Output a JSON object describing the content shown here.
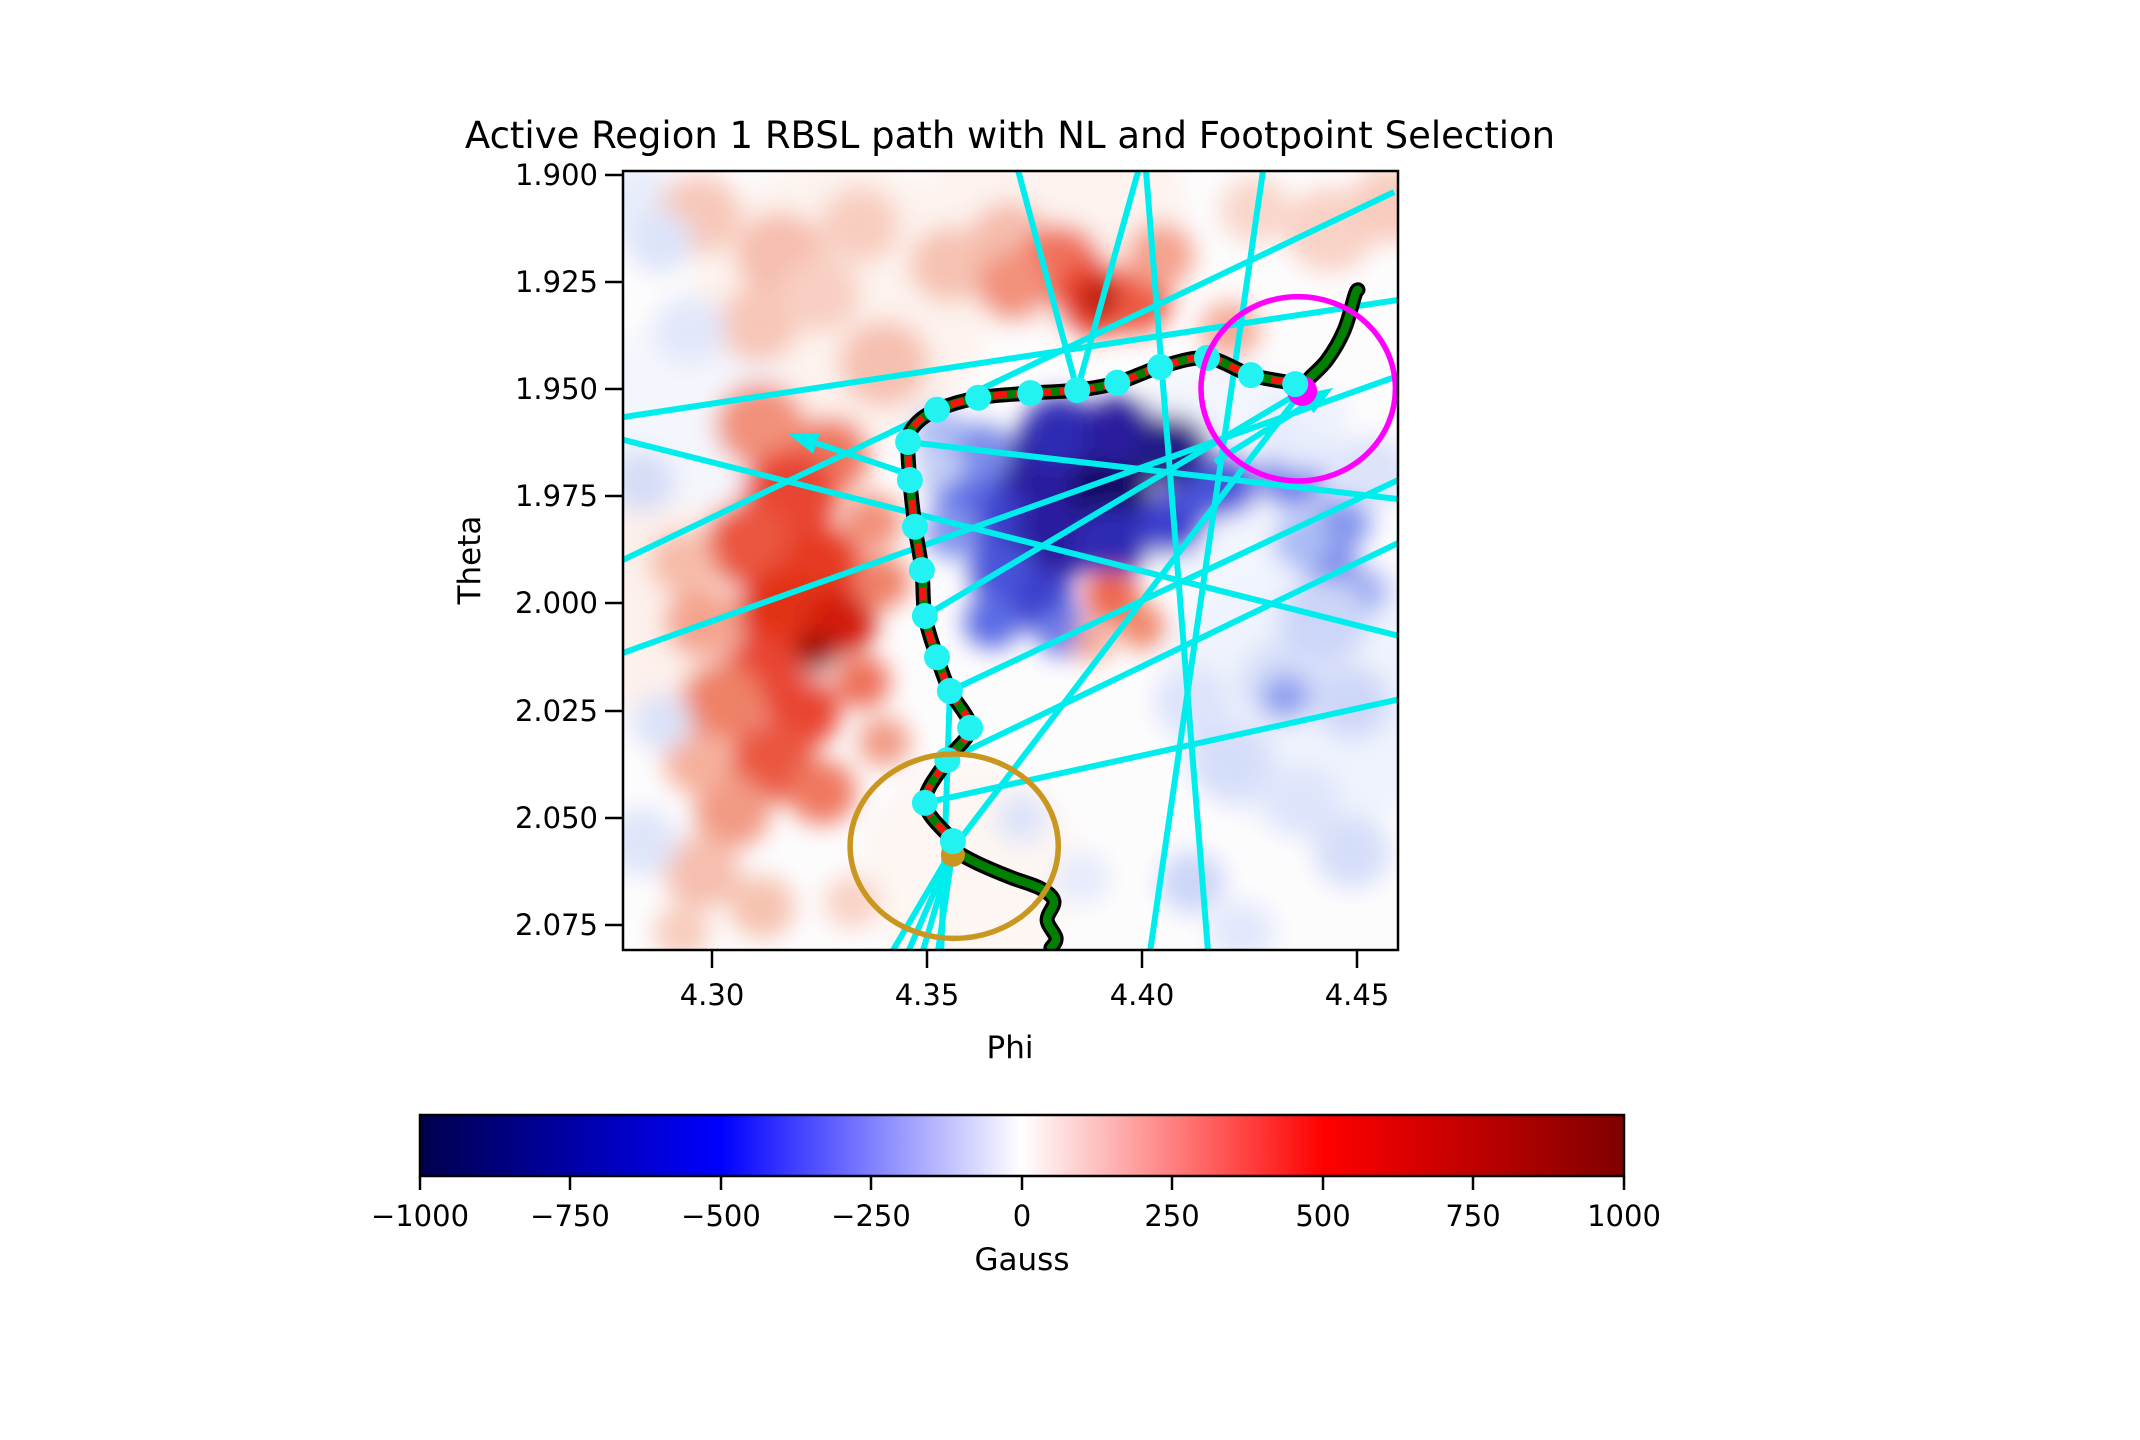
{
  "title": "Active Region 1 RBSL path with NL and Footpoint Selection",
  "axes": {
    "x": {
      "label": "Phi",
      "tick_labels": [
        "4.30",
        "4.35",
        "4.40",
        "4.45"
      ]
    },
    "y": {
      "label": "Theta",
      "tick_labels": [
        "1.900",
        "1.925",
        "1.950",
        "1.975",
        "2.000",
        "2.025",
        "2.050",
        "2.075"
      ]
    }
  },
  "colorbar": {
    "label": "Gauss",
    "tick_labels": [
      "−1000",
      "−750",
      "−500",
      "−250",
      "0",
      "250",
      "500",
      "750",
      "1000"
    ],
    "min": -1000,
    "max": 1000
  },
  "chart_data": {
    "type": "heatmap",
    "title": "Active Region 1 RBSL path with NL and Footpoint Selection",
    "xlabel": "Phi",
    "ylabel": "Theta",
    "xlim": [
      4.2793,
      4.4595
    ],
    "ylim": [
      1.8991,
      2.0808
    ],
    "x_ticks": [
      4.3,
      4.35,
      4.4,
      4.45
    ],
    "y_ticks": [
      1.9,
      1.925,
      1.95,
      1.975,
      2.0,
      2.025,
      2.05,
      2.075
    ],
    "colormap": "seismic",
    "clim": [
      -1000,
      1000
    ],
    "colorbar_label": "Gauss",
    "colormap_stops": [
      [
        0,
        "#00004D"
      ],
      [
        0.25,
        "#0000FF"
      ],
      [
        0.5,
        "#FFFFFF"
      ],
      [
        0.75,
        "#FF0000"
      ],
      [
        1,
        "#800000"
      ]
    ],
    "colors": {
      "nl_line": "#00EDED",
      "path_outline": "#000000",
      "path_green": "#008000",
      "path_dash": "#FF1010",
      "dot": "#22F2F2",
      "magenta": "#FF00FF",
      "goldenrod": "#C99720"
    },
    "rbsl_path": {
      "green_head": [
        [
          4.4502,
          1.9268
        ],
        [
          4.4495,
          1.928
        ],
        [
          4.447,
          1.9362
        ],
        [
          4.443,
          1.9432
        ],
        [
          4.4386,
          1.9478
        ],
        [
          4.4372,
          1.9504
        ]
      ],
      "neutral_line": [
        [
          4.4372,
          1.9504
        ],
        [
          4.4356,
          1.9488
        ],
        [
          4.4253,
          1.9467
        ],
        [
          4.4151,
          1.9427
        ],
        [
          4.4042,
          1.9448
        ],
        [
          4.3942,
          1.9485
        ],
        [
          4.3849,
          1.9502
        ],
        [
          4.374,
          1.9509
        ],
        [
          4.3619,
          1.952
        ],
        [
          4.3523,
          1.9548
        ],
        [
          4.3474,
          1.9581
        ],
        [
          4.3456,
          1.9623
        ],
        [
          4.346,
          1.9712
        ],
        [
          4.3472,
          1.9821
        ],
        [
          4.3488,
          1.9922
        ],
        [
          4.3495,
          2.0029
        ],
        [
          4.3523,
          2.0125
        ],
        [
          4.3553,
          2.0204
        ],
        [
          4.36,
          2.029
        ],
        [
          4.3547,
          2.0365
        ],
        [
          4.3495,
          2.0465
        ],
        [
          4.356,
          2.0554
        ],
        [
          4.356,
          2.0572
        ]
      ],
      "green_tail": [
        [
          4.356,
          2.0572
        ],
        [
          4.3612,
          2.0603
        ],
        [
          4.3693,
          2.0638
        ],
        [
          4.3763,
          2.0664
        ],
        [
          4.3795,
          2.0694
        ],
        [
          4.3779,
          2.0738
        ],
        [
          4.38,
          2.078
        ],
        [
          4.3788,
          2.0803
        ]
      ]
    },
    "path_dots": [
      [
        4.4356,
        1.9488
      ],
      [
        4.4253,
        1.9467
      ],
      [
        4.4151,
        1.9427
      ],
      [
        4.4042,
        1.9448
      ],
      [
        4.3942,
        1.9485
      ],
      [
        4.3849,
        1.9502
      ],
      [
        4.374,
        1.9509
      ],
      [
        4.3619,
        1.952
      ],
      [
        4.3523,
        1.9548
      ],
      [
        4.3456,
        1.9623
      ],
      [
        4.346,
        1.9712
      ],
      [
        4.3472,
        1.9821
      ],
      [
        4.3488,
        1.9922
      ],
      [
        4.3495,
        2.0029
      ],
      [
        4.3523,
        2.0125
      ],
      [
        4.3553,
        2.0204
      ],
      [
        4.36,
        2.029
      ],
      [
        4.3547,
        2.0365
      ],
      [
        4.3495,
        2.0465
      ],
      [
        4.356,
        2.0554
      ]
    ],
    "footpoints": {
      "positive": {
        "phi": 4.4372,
        "theta": 1.9504,
        "color": "#FF00FF",
        "radius_px": 15
      },
      "negative": {
        "phi": 4.356,
        "theta": 2.0572,
        "color": "#C99720",
        "radius_px": 12
      }
    },
    "selection_circles": [
      {
        "phi": 4.4363,
        "theta": 1.9499,
        "rx": 0.0226,
        "ry": 0.0215,
        "color": "#FF00FF"
      },
      {
        "phi": 4.3563,
        "theta": 2.0566,
        "rx": 0.0242,
        "ry": 0.0215,
        "color": "#C99720"
      }
    ],
    "arrows": [
      {
        "from": [
          4.417,
          1.967
        ],
        "to": [
          4.4444,
          1.9497
        ]
      },
      {
        "from": [
          4.3484,
          1.9707
        ],
        "to": [
          4.3177,
          1.9604
        ]
      }
    ],
    "nl_candidate_lines": [
      [
        4.3712,
        1.8991,
        4.3849,
        1.9502
      ],
      [
        4.3991,
        1.8991,
        4.3849,
        1.9502
      ],
      [
        4.4009,
        1.8991,
        4.4153,
        2.0808
      ],
      [
        4.4281,
        1.8991,
        4.4019,
        2.0808
      ],
      [
        4.2793,
        1.9565,
        4.4595,
        1.9292
      ],
      [
        4.2793,
        1.9898,
        4.4586,
        1.904
      ],
      [
        4.2793,
        1.9618,
        4.4595,
        2.0075
      ],
      [
        4.2793,
        2.0115,
        4.4595,
        1.9469
      ],
      [
        4.3456,
        1.9623,
        4.4595,
        1.9756
      ],
      [
        4.3495,
        2.0029,
        4.4372,
        1.9504
      ],
      [
        4.3553,
        2.0204,
        4.4595,
        1.9712
      ],
      [
        4.3547,
        2.0365,
        4.4595,
        1.9859
      ],
      [
        4.356,
        2.0572,
        4.4372,
        1.9504
      ],
      [
        4.356,
        2.0572,
        4.3421,
        2.0808
      ],
      [
        4.356,
        2.0572,
        4.3458,
        2.0808
      ],
      [
        4.356,
        2.0572,
        4.3491,
        2.0808
      ],
      [
        4.356,
        2.0572,
        4.3526,
        2.0808
      ],
      [
        4.3553,
        2.0204,
        4.3533,
        2.0808
      ],
      [
        4.3495,
        2.0465,
        4.4595,
        2.0224
      ]
    ],
    "heat_blobs": [
      [
        4.33,
        1.93,
        150,
        "#fdf3ee"
      ],
      [
        4.3,
        2.0,
        140,
        "#fdf1ec"
      ],
      [
        4.44,
        2.02,
        150,
        "#eff3fd"
      ],
      [
        4.42,
        1.97,
        120,
        "#f2f5fd"
      ],
      [
        4.36,
        2.062,
        110,
        "#fdf6f2"
      ],
      [
        4.38,
        1.908,
        130,
        "#fdf3ef"
      ],
      [
        4.295,
        1.955,
        100,
        "#f4f6fd"
      ],
      [
        4.283,
        1.906,
        40,
        "#e8edfb"
      ],
      [
        4.2972,
        1.9093,
        42,
        "#f7c8ba"
      ],
      [
        4.3158,
        1.9187,
        45,
        "#f6beae"
      ],
      [
        4.3344,
        1.9117,
        40,
        "#f8cdc0"
      ],
      [
        4.3553,
        1.921,
        40,
        "#f6c2b2"
      ],
      [
        4.3693,
        1.9152,
        40,
        "#f5bcac"
      ],
      [
        4.3107,
        1.935,
        40,
        "#f7c6b8"
      ],
      [
        4.34,
        1.944,
        45,
        "#f6c0b0"
      ],
      [
        4.3251,
        1.928,
        40,
        "#f8cfc2"
      ],
      [
        4.3809,
        1.921,
        42,
        "#f0715c"
      ],
      [
        4.3891,
        1.929,
        40,
        "#e8402a"
      ],
      [
        4.3984,
        1.9292,
        36,
        "#ee5a42"
      ],
      [
        4.3902,
        1.9287,
        18,
        "#b01000"
      ],
      [
        4.4042,
        1.9187,
        34,
        "#f4a28e"
      ],
      [
        4.4205,
        1.9362,
        30,
        "#f5ab97"
      ],
      [
        4.37,
        1.926,
        36,
        "#f2917c"
      ],
      [
        4.4437,
        1.9128,
        45,
        "#f9d2c6"
      ],
      [
        4.4577,
        1.907,
        40,
        "#f8ccbe"
      ],
      [
        4.4263,
        1.9082,
        35,
        "#f9d6ca"
      ],
      [
        4.3112,
        1.9583,
        45,
        "#f2917a"
      ],
      [
        4.3274,
        1.9653,
        40,
        "#ef7860"
      ],
      [
        4.3181,
        1.9747,
        48,
        "#e84530"
      ],
      [
        4.3084,
        1.9863,
        45,
        "#ea573f"
      ],
      [
        4.3256,
        1.991,
        40,
        "#e63a22"
      ],
      [
        4.3163,
        2.002,
        46,
        "#e23014"
      ],
      [
        4.3302,
        2.0043,
        34,
        "#d21d08"
      ],
      [
        4.324,
        2.0113,
        22,
        "#9c0f00"
      ],
      [
        4.3116,
        2.016,
        40,
        "#e84530"
      ],
      [
        4.3023,
        2.023,
        42,
        "#ef8168"
      ],
      [
        4.3209,
        2.0253,
        38,
        "#e84530"
      ],
      [
        4.314,
        2.037,
        42,
        "#ea573f"
      ],
      [
        4.3256,
        2.044,
        34,
        "#ef7860"
      ],
      [
        4.3047,
        2.0486,
        38,
        "#f29a84"
      ],
      [
        4.2965,
        2.037,
        33,
        "#f5b09c"
      ],
      [
        4.2977,
        2.0043,
        38,
        "#f4a48e"
      ],
      [
        4.293,
        1.9903,
        33,
        "#f6bca8"
      ],
      [
        4.3372,
        1.981,
        30,
        "#f2917a"
      ],
      [
        4.3395,
        1.995,
        28,
        "#ef8168"
      ],
      [
        4.3349,
        2.0183,
        28,
        "#ee7058"
      ],
      [
        4.34,
        2.0323,
        26,
        "#f29a84"
      ],
      [
        4.2977,
        2.0626,
        38,
        "#f6beae"
      ],
      [
        4.3116,
        2.0708,
        33,
        "#f6c2b0"
      ],
      [
        4.293,
        2.0766,
        28,
        "#f8ccbc"
      ],
      [
        4.3326,
        2.0696,
        28,
        "#f9d2c4"
      ],
      [
        4.2837,
        1.9716,
        33,
        "#d5ddf6"
      ],
      [
        4.2884,
        2.0276,
        30,
        "#dbe2f8"
      ],
      [
        4.2837,
        2.0556,
        36,
        "#dfe5f9"
      ],
      [
        4.2879,
        1.9156,
        33,
        "#dde4f9"
      ],
      [
        4.2949,
        1.9362,
        36,
        "#e2e7fa"
      ],
      [
        4.3791,
        1.9688,
        52,
        "#190f63"
      ],
      [
        4.3919,
        1.974,
        44,
        "#190f63"
      ],
      [
        4.374,
        1.9716,
        44,
        "#2a1f9e"
      ],
      [
        4.3647,
        1.981,
        38,
        "#3d3fce"
      ],
      [
        4.3791,
        1.9856,
        42,
        "#2a1f9e"
      ],
      [
        4.393,
        1.9856,
        38,
        "#2f2bb4"
      ],
      [
        4.407,
        1.981,
        34,
        "#3d3fce"
      ],
      [
        4.3674,
        1.9926,
        33,
        "#4a55da"
      ],
      [
        4.3767,
        1.9996,
        32,
        "#3d3fce"
      ],
      [
        4.3651,
        2.0043,
        28,
        "#5a6ae4"
      ],
      [
        4.3814,
        2.0066,
        26,
        "#6c7ce8"
      ],
      [
        4.3581,
        1.9716,
        33,
        "#5a6ae4"
      ],
      [
        4.3558,
        1.9833,
        28,
        "#8495ee"
      ],
      [
        4.414,
        1.974,
        30,
        "#4a55da"
      ],
      [
        4.3809,
        1.96,
        38,
        "#2f2bb4"
      ],
      [
        4.3949,
        1.96,
        38,
        "#2a1f9e"
      ],
      [
        4.407,
        1.9646,
        38,
        "#241a86"
      ],
      [
        4.4193,
        1.9723,
        33,
        "#4a55da"
      ],
      [
        4.353,
        1.96,
        26,
        "#aabbf4"
      ],
      [
        4.3628,
        1.9646,
        30,
        "#7c8cea"
      ],
      [
        4.353,
        1.968,
        24,
        "#c2cef5"
      ],
      [
        4.393,
        1.9984,
        28,
        "#ee6650"
      ],
      [
        4.4,
        2.0054,
        24,
        "#f0886c"
      ],
      [
        4.3884,
        2.009,
        20,
        "#f4a48e"
      ],
      [
        4.4349,
        1.9705,
        33,
        "#6c7ce8"
      ],
      [
        4.4465,
        1.981,
        29,
        "#8495ee"
      ],
      [
        4.4442,
        1.9914,
        27,
        "#7c8cea"
      ],
      [
        4.4512,
        1.9973,
        25,
        "#9dabf1"
      ],
      [
        4.4372,
        1.9856,
        29,
        "#aabbf4"
      ],
      [
        4.4419,
        2.0043,
        45,
        "#ccd6f8"
      ],
      [
        4.4326,
        2.0183,
        42,
        "#d5def9"
      ],
      [
        4.4488,
        2.023,
        38,
        "#cdd7f8"
      ],
      [
        4.4116,
        2.023,
        38,
        "#dde4fb"
      ],
      [
        4.4209,
        2.037,
        42,
        "#d5def9"
      ],
      [
        4.4372,
        2.0463,
        38,
        "#dee5fb"
      ],
      [
        4.4488,
        2.058,
        38,
        "#d5def9"
      ],
      [
        4.4116,
        2.065,
        33,
        "#ccd6f8"
      ],
      [
        4.4333,
        2.0218,
        24,
        "#8e9eee"
      ],
      [
        4.4233,
        2.0766,
        33,
        "#e2e8fc"
      ],
      [
        4.4372,
        1.96,
        42,
        "#e4eafc"
      ],
      [
        4.4535,
        1.9693,
        38,
        "#dce3fa"
      ],
      [
        4.441,
        1.956,
        30,
        "#edf1fd"
      ],
      [
        4.372,
        2.05,
        26,
        "#dce3fa"
      ],
      [
        4.386,
        2.064,
        28,
        "#e6ebfc"
      ]
    ]
  }
}
